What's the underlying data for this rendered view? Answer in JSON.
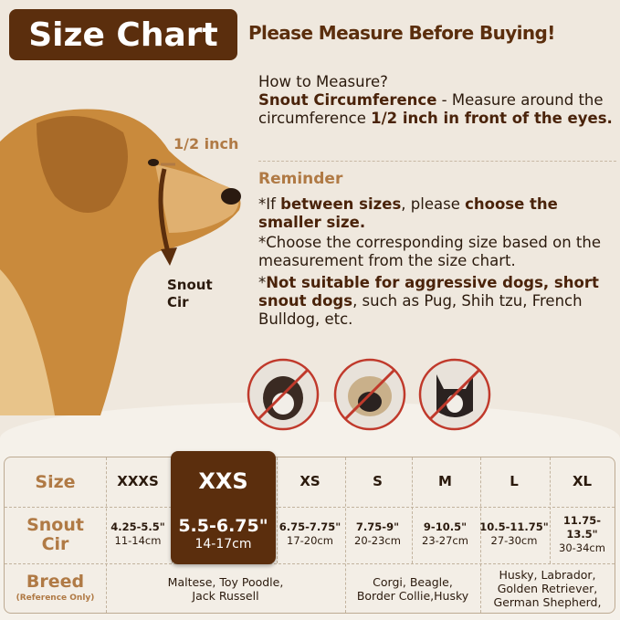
{
  "title": "Size Chart",
  "headline": "Please Measure Before Buying!",
  "how_to": {
    "heading": "How to Measure?",
    "term": "Snout Circumference",
    "desc": " - Measure around the circumference ",
    "emph": "1/2 inch in front of the eyes."
  },
  "reminder": {
    "heading": "Reminder",
    "r1": {
      "a": "*If ",
      "b": "between sizes",
      "c": ", please ",
      "d": "choose the smaller size",
      "e": "."
    },
    "r2": "*Choose the corresponding size based on the measurement from the size chart.",
    "r3": {
      "a": "*",
      "b": "Not suitable for aggressive dogs, short snout dogs",
      "c": ", such as Pug, Shih tzu, French Bulldog, etc."
    }
  },
  "diagram": {
    "half_inch": "1/2 inch",
    "snout_line1": "Snout",
    "snout_line2": "Cir"
  },
  "not_suitable_icons": [
    "shih-tzu",
    "pug",
    "french-bulldog"
  ],
  "colors": {
    "brown": "#5b2e0d",
    "tan": "#b07a45",
    "slash": "#c0392b"
  },
  "table": {
    "row_labels": {
      "size": "Size",
      "snout1": "Snout",
      "snout2": "Cir",
      "breed": "Breed",
      "breed_note": "(Reference Only)"
    },
    "highlighted": "XXS",
    "sizes": [
      {
        "size": "XXXS",
        "inch": "4.25-5.5\"",
        "cm": "11-14cm"
      },
      {
        "size": "XXS",
        "inch": "5.5-6.75\"",
        "cm": "14-17cm"
      },
      {
        "size": "XS",
        "inch": "6.75-7.75\"",
        "cm": "17-20cm"
      },
      {
        "size": "S",
        "inch": "7.75-9\"",
        "cm": "20-23cm"
      },
      {
        "size": "M",
        "inch": "9-10.5\"",
        "cm": "23-27cm"
      },
      {
        "size": "L",
        "inch": "10.5-11.75\"",
        "cm": "27-30cm"
      },
      {
        "size": "XL",
        "inch": "11.75-13.5\"",
        "cm": "30-34cm"
      }
    ],
    "breeds": [
      {
        "l1": "Maltese, Toy Poodle,",
        "l2": "Jack Russell"
      },
      {
        "l1": "Corgi, Beagle,",
        "l2": "Border Collie,Husky"
      },
      {
        "l1": "Husky, Labrador,",
        "l2": "Golden Retriever,",
        "l3": "German Shepherd,"
      }
    ]
  }
}
